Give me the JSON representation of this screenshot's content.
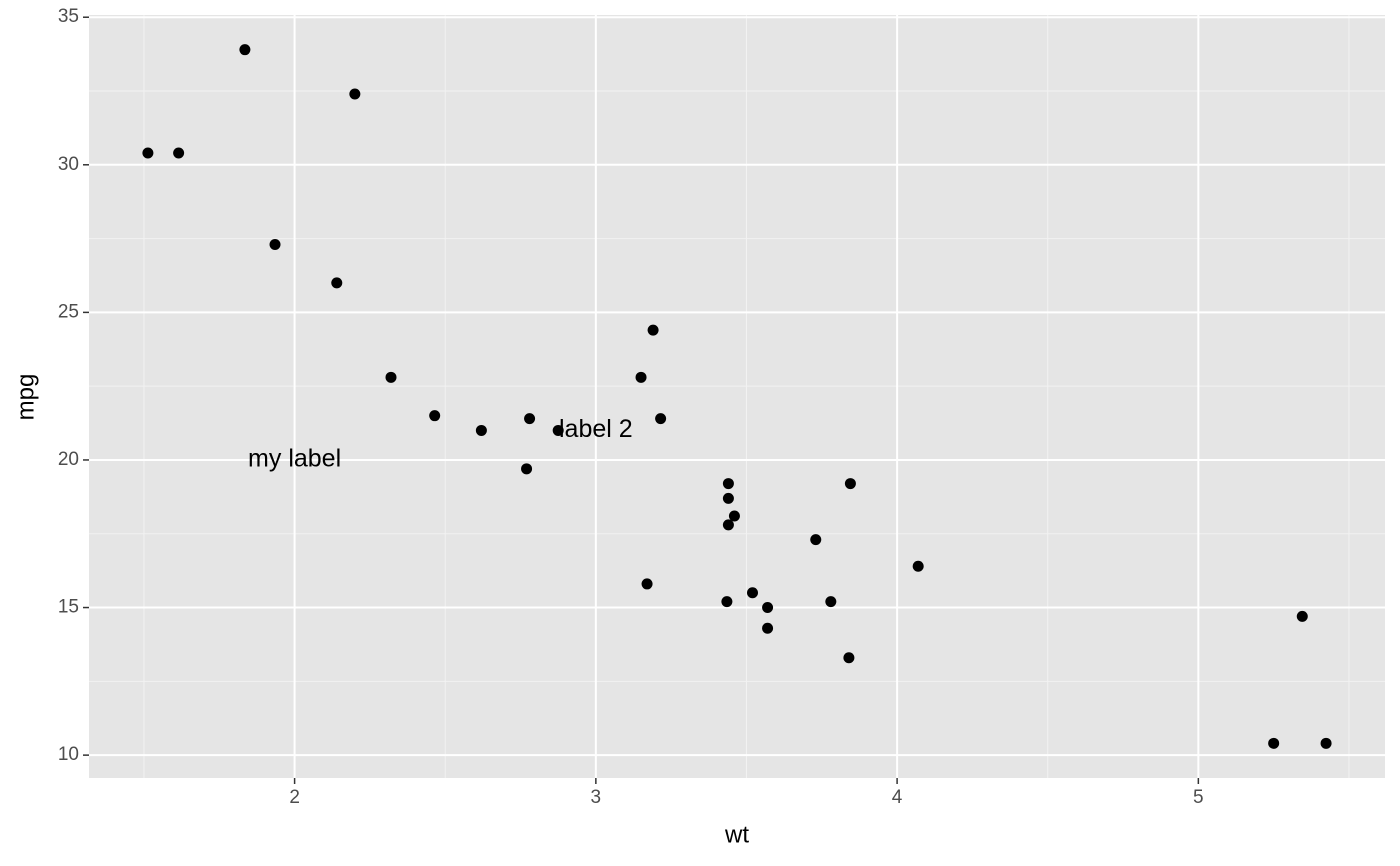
{
  "chart_data": {
    "type": "scatter",
    "x_label": "wt",
    "y_label": "mpg",
    "x": [
      2.62,
      2.875,
      2.32,
      3.215,
      3.44,
      3.46,
      3.57,
      3.19,
      3.15,
      3.44,
      3.44,
      4.07,
      3.73,
      3.78,
      5.25,
      5.424,
      5.345,
      2.2,
      1.615,
      1.835,
      2.465,
      3.52,
      3.435,
      3.84,
      3.845,
      1.935,
      2.14,
      1.513,
      3.17,
      2.77,
      3.57,
      2.78
    ],
    "values": [
      21.0,
      21.0,
      22.8,
      21.4,
      18.7,
      18.1,
      14.3,
      24.4,
      22.8,
      19.2,
      17.8,
      16.4,
      17.3,
      15.2,
      10.4,
      10.4,
      14.7,
      32.4,
      30.4,
      33.9,
      21.5,
      15.5,
      15.2,
      13.3,
      19.2,
      27.3,
      26.0,
      30.4,
      15.8,
      19.7,
      15.0,
      21.4
    ],
    "color": "#000000",
    "xlim": [
      1.3175,
      5.6196
    ],
    "xticks": [
      2,
      3,
      4,
      5
    ],
    "xminor": [
      1.5,
      2.5,
      3.5,
      4.5,
      5.5
    ],
    "ylim": [
      9.225,
      35.075
    ],
    "yticks": [
      10,
      15,
      20,
      25,
      30,
      35
    ],
    "yminor": [
      12.5,
      17.5,
      22.5,
      27.5,
      32.5
    ],
    "grid": true,
    "annotations": [
      {
        "text": "my label",
        "x": 2,
        "y": 20
      },
      {
        "text": "label 2",
        "x": 3,
        "y": 21
      }
    ]
  }
}
